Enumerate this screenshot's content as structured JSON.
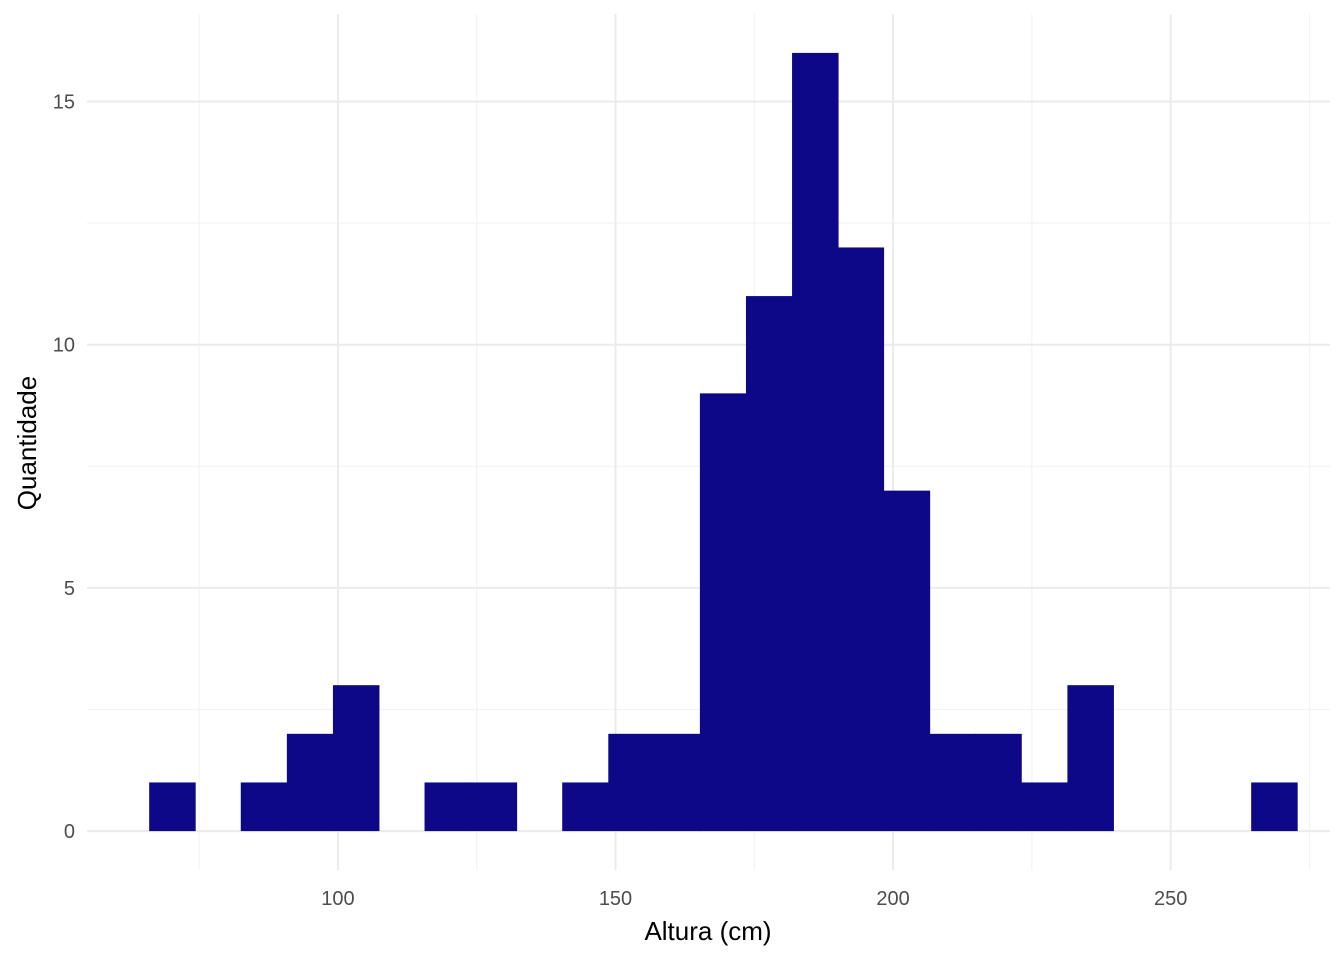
{
  "chart_data": {
    "type": "bar",
    "subtype": "histogram",
    "xlabel": "Altura (cm)",
    "ylabel": "Quantidade",
    "xlim": [
      54.8,
      278.7
    ],
    "ylim": [
      -0.8,
      16.8
    ],
    "x_ticks": [
      100,
      150,
      200,
      250
    ],
    "x_minor_ticks": [
      75,
      125,
      175,
      225,
      275
    ],
    "y_ticks": [
      0,
      5,
      10,
      15
    ],
    "y_minor_ticks": [
      2.5,
      7.5,
      12.5
    ],
    "grid": true,
    "bar_color": "#0D0887",
    "bin_width": 8.27,
    "bins": [
      {
        "x0": 66.0,
        "count": 1
      },
      {
        "x0": 74.3,
        "count": 0
      },
      {
        "x0": 82.5,
        "count": 1
      },
      {
        "x0": 90.8,
        "count": 2
      },
      {
        "x0": 99.1,
        "count": 3
      },
      {
        "x0": 107.3,
        "count": 0
      },
      {
        "x0": 115.6,
        "count": 1
      },
      {
        "x0": 123.9,
        "count": 1
      },
      {
        "x0": 132.2,
        "count": 0
      },
      {
        "x0": 140.4,
        "count": 1
      },
      {
        "x0": 148.7,
        "count": 2
      },
      {
        "x0": 157.0,
        "count": 2
      },
      {
        "x0": 165.2,
        "count": 9
      },
      {
        "x0": 173.5,
        "count": 11
      },
      {
        "x0": 181.8,
        "count": 16
      },
      {
        "x0": 190.0,
        "count": 12
      },
      {
        "x0": 198.3,
        "count": 7
      },
      {
        "x0": 206.6,
        "count": 2
      },
      {
        "x0": 214.8,
        "count": 2
      },
      {
        "x0": 223.1,
        "count": 1
      },
      {
        "x0": 231.4,
        "count": 3
      },
      {
        "x0": 239.7,
        "count": 0
      },
      {
        "x0": 247.9,
        "count": 0
      },
      {
        "x0": 256.2,
        "count": 0
      },
      {
        "x0": 264.5,
        "count": 1
      }
    ]
  }
}
